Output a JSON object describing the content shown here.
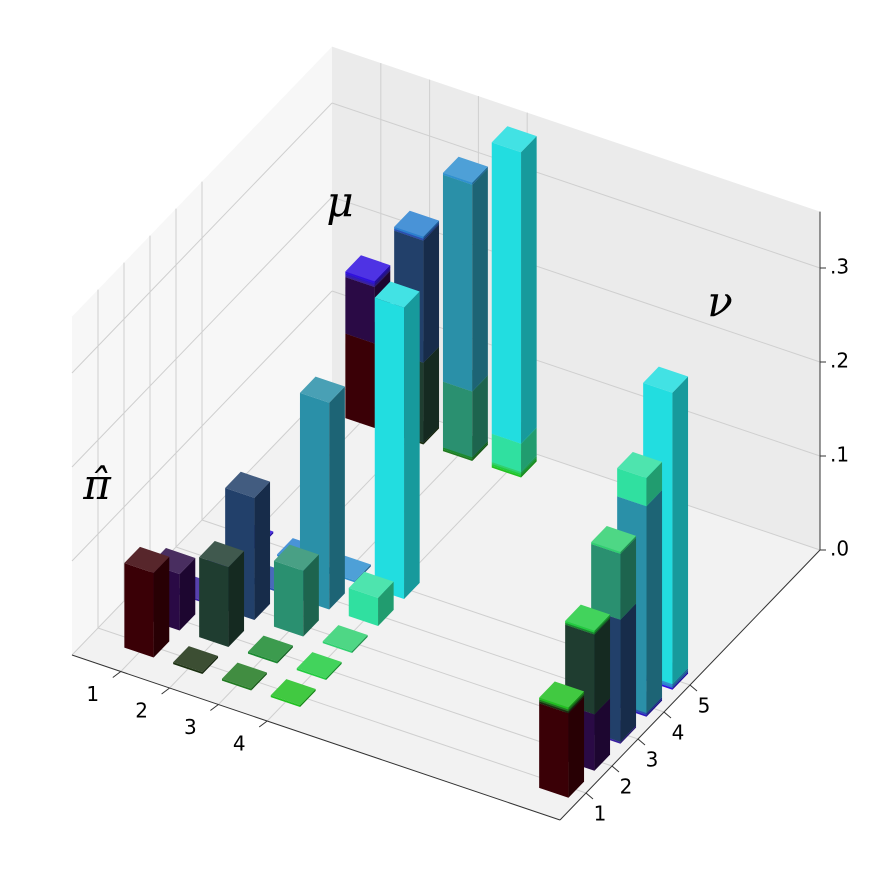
{
  "chart_data": {
    "type": "bar3d",
    "matrix_label": "π̂",
    "mu_label": "μ",
    "nu_label": "ν",
    "xlim": [
      0,
      10
    ],
    "ylim": [
      0,
      10
    ],
    "zlim": [
      0,
      0.36
    ],
    "xticks": [
      1,
      2,
      3,
      4
    ],
    "yticks": [
      1,
      2,
      3,
      4,
      5
    ],
    "zticks": [
      {
        "value": 0,
        "label": ".0"
      },
      {
        "value": 0.1,
        "label": ".1"
      },
      {
        "value": 0.2,
        "label": ".2"
      },
      {
        "value": 0.3,
        "label": ".3"
      }
    ],
    "grid": true,
    "matrix": [
      [
        0.09,
        0.06,
        0.002,
        0.002,
        0.002
      ],
      [
        0.002,
        0.085,
        0.13,
        0.002,
        0.002
      ],
      [
        0.002,
        0.002,
        0.07,
        0.22,
        0.002
      ],
      [
        0.002,
        0.002,
        0.002,
        0.03,
        0.31
      ]
    ],
    "colors": [
      [
        "#3a0006",
        "#2a0a45",
        "#3a20a0",
        "#2e18c0",
        "#3010e0"
      ],
      [
        "#1a3010",
        "#1f3d30",
        "#22406a",
        "#2a50b0",
        "#2a80d0"
      ],
      [
        "#207a20",
        "#1a8a30",
        "#2a9070",
        "#2a90a8",
        "#3090d0"
      ],
      [
        "#20c020",
        "#22cc40",
        "#30d070",
        "#30e0a0",
        "#22dde0"
      ]
    ]
  }
}
